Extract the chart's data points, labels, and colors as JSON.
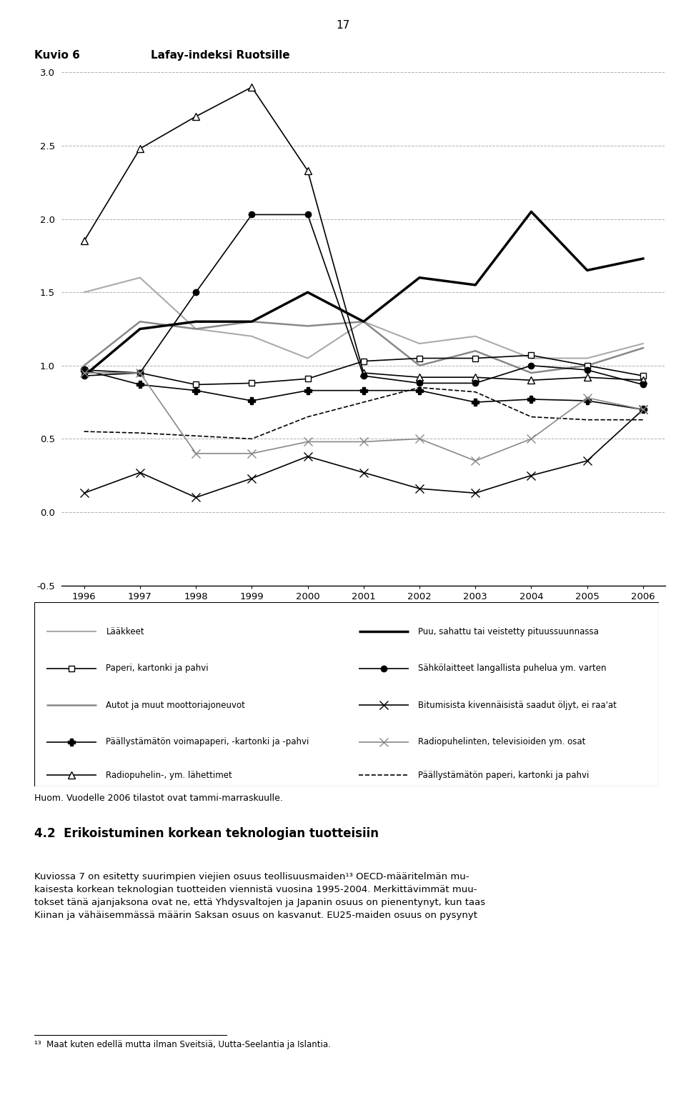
{
  "title_kuvio": "Kuvio 6",
  "title_main": "Lafay-indeksi Ruotsille",
  "page_number": "17",
  "years": [
    1996,
    1997,
    1998,
    1999,
    2000,
    2001,
    2002,
    2003,
    2004,
    2005,
    2006
  ],
  "ylim": [
    -0.5,
    3.0
  ],
  "yticks": [
    -0.5,
    0.0,
    0.5,
    1.0,
    1.5,
    2.0,
    2.5,
    3.0
  ],
  "series": {
    "laakkeet": {
      "label": "Lääkkeet",
      "values": [
        1.5,
        1.6,
        1.25,
        1.2,
        1.05,
        1.3,
        1.15,
        1.2,
        1.05,
        1.05,
        1.15
      ],
      "color": "#aaaaaa",
      "linewidth": 1.5,
      "linestyle": "-",
      "marker": null
    },
    "paperi": {
      "label": "Paperi, kartonki ja pahvi",
      "values": [
        0.97,
        0.95,
        0.87,
        0.88,
        0.91,
        1.03,
        1.05,
        1.05,
        1.07,
        1.0,
        0.93
      ],
      "color": "#000000",
      "linewidth": 1.2,
      "linestyle": "-",
      "marker": "s",
      "markersize": 6,
      "markerfacecolor": "white",
      "markeredgecolor": "#000000"
    },
    "autot": {
      "label": "Autot ja muut moottoriajoneuvot",
      "values": [
        1.0,
        1.3,
        1.25,
        1.3,
        1.27,
        1.3,
        1.0,
        1.1,
        0.95,
        1.0,
        1.12
      ],
      "color": "#888888",
      "linewidth": 1.8,
      "linestyle": "-",
      "marker": null
    },
    "paallystamaton": {
      "label": "Päällystämätön voimapaperi, -kartonki ja -pahvi",
      "values": [
        0.97,
        0.87,
        0.83,
        0.76,
        0.83,
        0.83,
        0.83,
        0.75,
        0.77,
        0.76,
        0.7
      ],
      "color": "#000000",
      "linewidth": 1.2,
      "linestyle": "-",
      "marker": "P",
      "markersize": 7,
      "markerfacecolor": "#000000",
      "markeredgecolor": "#000000"
    },
    "radiopuhelin": {
      "label": "Radiopuhelin-, ym. lähettimet",
      "values": [
        1.85,
        2.48,
        2.7,
        2.9,
        2.33,
        0.95,
        0.92,
        0.92,
        0.9,
        0.92,
        0.9
      ],
      "color": "#000000",
      "linewidth": 1.2,
      "linestyle": "-",
      "marker": "^",
      "markersize": 7,
      "markerfacecolor": "white",
      "markeredgecolor": "#000000"
    },
    "puu": {
      "label": "Puu, sahattu tai veistetty pituussuunnassa",
      "values": [
        0.93,
        1.25,
        1.3,
        1.3,
        1.5,
        1.3,
        1.6,
        1.55,
        2.05,
        1.65,
        1.73
      ],
      "color": "#000000",
      "linewidth": 2.5,
      "linestyle": "-",
      "marker": null
    },
    "sahkolaitteet": {
      "label": "Sähkölaitteet langallista puhelua ym. varten",
      "values": [
        0.93,
        0.95,
        1.5,
        2.03,
        2.03,
        0.93,
        0.88,
        0.88,
        1.0,
        0.97,
        0.87
      ],
      "color": "#000000",
      "linewidth": 1.2,
      "linestyle": "-",
      "marker": "o",
      "markersize": 6,
      "markerfacecolor": "#000000",
      "markeredgecolor": "#000000"
    },
    "bitumisista": {
      "label": "Bitumisista kivennäisistä saadut öljyt, ei raa'at",
      "values": [
        0.13,
        0.27,
        0.1,
        0.23,
        0.38,
        0.27,
        0.16,
        0.13,
        0.25,
        0.35,
        0.7
      ],
      "color": "#000000",
      "linewidth": 1.2,
      "linestyle": "-",
      "marker": "x",
      "markersize": 8,
      "markeredgecolor": "#000000"
    },
    "radiopuhelinten": {
      "label": "Radiopuhelinten, televisioiden ym. osat",
      "values": [
        0.95,
        0.95,
        0.4,
        0.4,
        0.48,
        0.48,
        0.5,
        0.35,
        0.5,
        0.78,
        0.7
      ],
      "color": "#888888",
      "linewidth": 1.2,
      "linestyle": "-",
      "marker": "x",
      "markersize": 8,
      "markeredgecolor": "#888888"
    },
    "paallystamaton_pahvi": {
      "label": "Päällystämätön paperi, kartonki ja pahvi",
      "values": [
        0.55,
        0.54,
        0.52,
        0.5,
        0.65,
        0.75,
        0.85,
        0.82,
        0.65,
        0.63,
        0.63
      ],
      "color": "#000000",
      "linewidth": 1.2,
      "linestyle": "--",
      "marker": null
    }
  },
  "legend_items_left": [
    {
      "key": "laakkeet"
    },
    {
      "key": "paperi"
    },
    {
      "key": "autot"
    },
    {
      "key": "paallystamaton"
    },
    {
      "key": "radiopuhelin"
    }
  ],
  "legend_items_right": [
    {
      "key": "puu"
    },
    {
      "key": "sahkolaitteet"
    },
    {
      "key": "bitumisista"
    },
    {
      "key": "radiopuhelinten"
    },
    {
      "key": "paallystamaton_pahvi"
    }
  ],
  "footnote": "Huom. Vuodelle 2006 tilastot ovat tammi-marraskuulle.",
  "section_heading": "4.2  Erikoistuminen korkean teknologian tuotteisiin",
  "body_text": "Kuviossa 7 on esitetty suurimpien viejien osuus teollisuusmaiden¹³ OECD-määritelmän mu-\nkaisesta korkean teknologian tuotteiden viennistä vuosina 1995-2004. Merkittävimmät muu-\ntokset tänä ajanjaksona ovat ne, että Yhdysvaltojen ja Japanin osuus on pienentynyt, kun taas\nKiinan ja vähäisemmässä määrin Saksan osuus on kasvanut. EU25-maiden osuus on pysynyt",
  "footnote2": "¹³  Maat kuten edellä mutta ilman Sveitsiä, Uutta-Seelantia ja Islantia."
}
